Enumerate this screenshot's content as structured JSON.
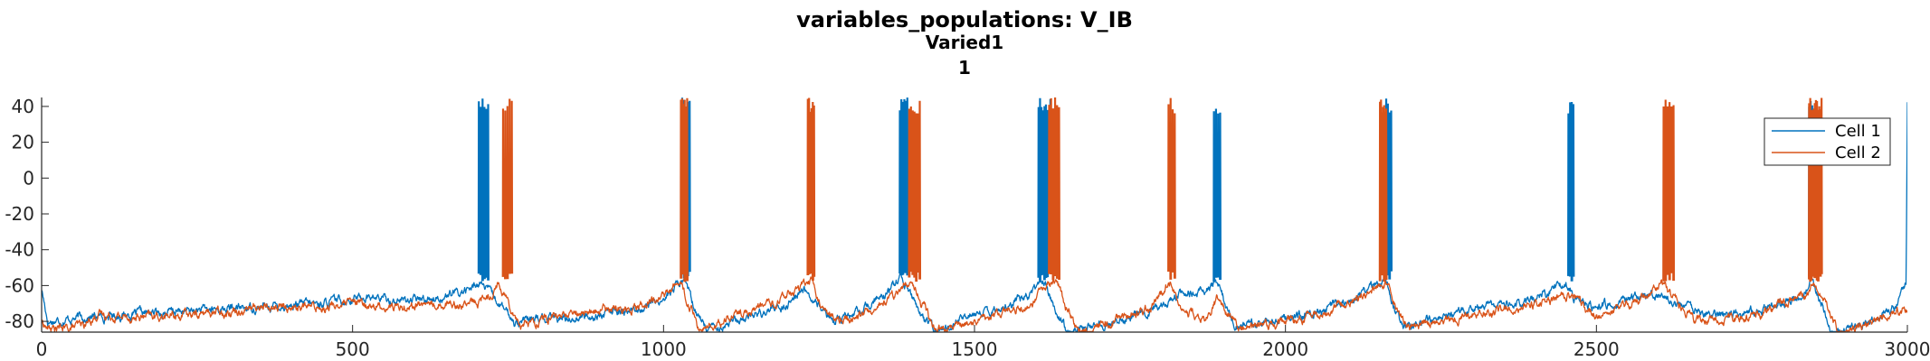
{
  "chart_data": {
    "type": "line",
    "title": "variables_populations: V_IB",
    "subtitle": "Varied1",
    "subsubtitle": "1",
    "xlabel": "",
    "ylabel": "",
    "xlim": [
      0,
      3000
    ],
    "ylim": [
      -86,
      45
    ],
    "xticks": [
      "0",
      "500",
      "1000",
      "1500",
      "2000",
      "2500",
      "3000"
    ],
    "xtick_values": [
      0,
      500,
      1000,
      1500,
      2000,
      2500,
      3000
    ],
    "yticks": [
      "40",
      "20",
      "0",
      "-20",
      "-40",
      "-60",
      "-80"
    ],
    "ytick_values": [
      40,
      20,
      0,
      -20,
      -40,
      -60,
      -80
    ],
    "grid": false,
    "legend_position": "top-right",
    "series": [
      {
        "name": "Cell 1",
        "color": "#0072BD",
        "baseline": [
          [
            0,
            -62
          ],
          [
            10,
            -80
          ],
          [
            60,
            -78
          ],
          [
            150,
            -76
          ],
          [
            250,
            -74
          ],
          [
            350,
            -72
          ],
          [
            450,
            -70
          ],
          [
            520,
            -66
          ],
          [
            560,
            -68
          ],
          [
            600,
            -68
          ],
          [
            650,
            -66
          ],
          [
            690,
            -62
          ],
          [
            705,
            -58
          ],
          [
            725,
            -66
          ],
          [
            760,
            -80
          ],
          [
            850,
            -78
          ],
          [
            950,
            -74
          ],
          [
            1000,
            -68
          ],
          [
            1020,
            -60
          ],
          [
            1035,
            -57
          ],
          [
            1050,
            -74
          ],
          [
            1070,
            -84
          ],
          [
            1150,
            -76
          ],
          [
            1200,
            -70
          ],
          [
            1225,
            -62
          ],
          [
            1245,
            -70
          ],
          [
            1270,
            -80
          ],
          [
            1320,
            -74
          ],
          [
            1365,
            -62
          ],
          [
            1380,
            -57
          ],
          [
            1395,
            -64
          ],
          [
            1420,
            -80
          ],
          [
            1440,
            -86
          ],
          [
            1500,
            -76
          ],
          [
            1560,
            -70
          ],
          [
            1600,
            -62
          ],
          [
            1612,
            -57
          ],
          [
            1630,
            -74
          ],
          [
            1650,
            -86
          ],
          [
            1720,
            -80
          ],
          [
            1790,
            -74
          ],
          [
            1830,
            -64
          ],
          [
            1875,
            -62
          ],
          [
            1890,
            -57
          ],
          [
            1905,
            -72
          ],
          [
            1920,
            -82
          ],
          [
            1980,
            -80
          ],
          [
            2060,
            -74
          ],
          [
            2140,
            -62
          ],
          [
            2160,
            -57
          ],
          [
            2175,
            -72
          ],
          [
            2190,
            -84
          ],
          [
            2300,
            -72
          ],
          [
            2400,
            -68
          ],
          [
            2450,
            -58
          ],
          [
            2465,
            -68
          ],
          [
            2500,
            -72
          ],
          [
            2550,
            -68
          ],
          [
            2600,
            -66
          ],
          [
            2630,
            -70
          ],
          [
            2680,
            -76
          ],
          [
            2760,
            -74
          ],
          [
            2830,
            -66
          ],
          [
            2845,
            -58
          ],
          [
            2862,
            -70
          ],
          [
            2880,
            -86
          ],
          [
            2950,
            -80
          ],
          [
            2985,
            -70
          ],
          [
            2998,
            -60
          ],
          [
            3000,
            40
          ]
        ],
        "bursts": [
          [
            703,
            718,
            6
          ],
          [
            1030,
            1042,
            5
          ],
          [
            1380,
            1392,
            6
          ],
          [
            1603,
            1622,
            9
          ],
          [
            1885,
            1895,
            4
          ],
          [
            2162,
            2170,
            4
          ],
          [
            2455,
            2463,
            4
          ],
          [
            2842,
            2852,
            5
          ]
        ]
      },
      {
        "name": "Cell 2",
        "color": "#D95319",
        "baseline": [
          [
            0,
            -80
          ],
          [
            10,
            -84
          ],
          [
            40,
            -84
          ],
          [
            70,
            -82
          ],
          [
            90,
            -76
          ],
          [
            150,
            -78
          ],
          [
            250,
            -76
          ],
          [
            350,
            -72
          ],
          [
            450,
            -72
          ],
          [
            500,
            -70
          ],
          [
            550,
            -72
          ],
          [
            640,
            -70
          ],
          [
            700,
            -70
          ],
          [
            720,
            -66
          ],
          [
            735,
            -58
          ],
          [
            752,
            -70
          ],
          [
            770,
            -82
          ],
          [
            850,
            -76
          ],
          [
            950,
            -72
          ],
          [
            1000,
            -66
          ],
          [
            1025,
            -57
          ],
          [
            1040,
            -70
          ],
          [
            1060,
            -86
          ],
          [
            1120,
            -76
          ],
          [
            1180,
            -70
          ],
          [
            1225,
            -60
          ],
          [
            1238,
            -57
          ],
          [
            1255,
            -72
          ],
          [
            1280,
            -80
          ],
          [
            1340,
            -74
          ],
          [
            1380,
            -62
          ],
          [
            1400,
            -57
          ],
          [
            1415,
            -70
          ],
          [
            1440,
            -86
          ],
          [
            1520,
            -78
          ],
          [
            1590,
            -72
          ],
          [
            1615,
            -60
          ],
          [
            1632,
            -57
          ],
          [
            1650,
            -74
          ],
          [
            1670,
            -86
          ],
          [
            1740,
            -78
          ],
          [
            1790,
            -70
          ],
          [
            1815,
            -57
          ],
          [
            1830,
            -74
          ],
          [
            1870,
            -78
          ],
          [
            1890,
            -68
          ],
          [
            1910,
            -78
          ],
          [
            1930,
            -84
          ],
          [
            2000,
            -80
          ],
          [
            2060,
            -76
          ],
          [
            2150,
            -62
          ],
          [
            2162,
            -57
          ],
          [
            2178,
            -72
          ],
          [
            2195,
            -84
          ],
          [
            2300,
            -76
          ],
          [
            2400,
            -70
          ],
          [
            2460,
            -66
          ],
          [
            2500,
            -76
          ],
          [
            2560,
            -70
          ],
          [
            2610,
            -58
          ],
          [
            2625,
            -68
          ],
          [
            2660,
            -80
          ],
          [
            2750,
            -78
          ],
          [
            2840,
            -64
          ],
          [
            2850,
            -57
          ],
          [
            2872,
            -72
          ],
          [
            2890,
            -86
          ],
          [
            2950,
            -80
          ],
          [
            3000,
            -72
          ]
        ],
        "bursts": [
          [
            742,
            756,
            5
          ],
          [
            1028,
            1038,
            6
          ],
          [
            1232,
            1242,
            6
          ],
          [
            1395,
            1412,
            7
          ],
          [
            1620,
            1636,
            6
          ],
          [
            1812,
            1822,
            4
          ],
          [
            2152,
            2162,
            7
          ],
          [
            2608,
            2624,
            6
          ],
          [
            2842,
            2862,
            12
          ]
        ]
      }
    ]
  }
}
